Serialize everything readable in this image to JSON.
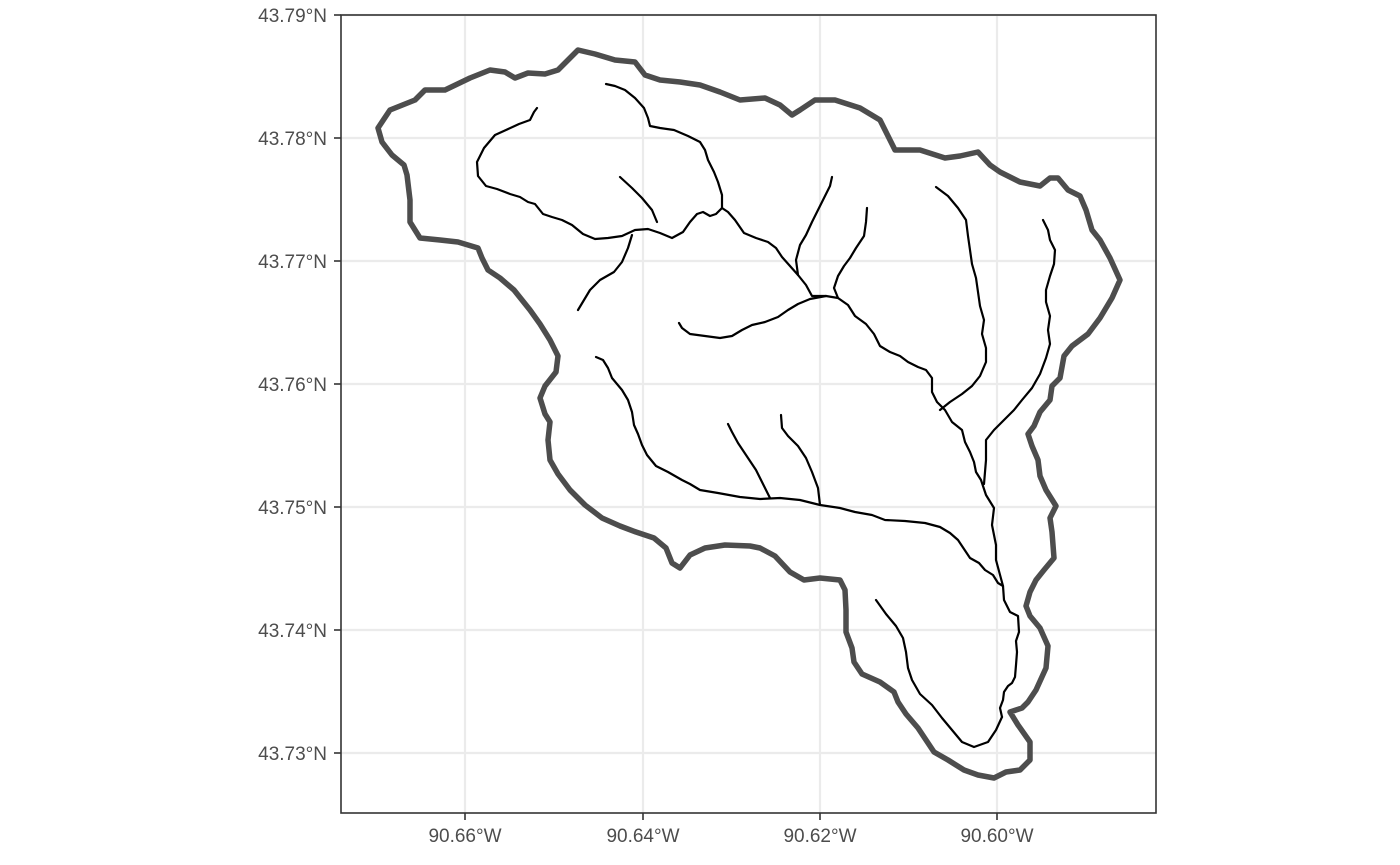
{
  "map": {
    "type": "watershed-map",
    "latitude_labels": [
      "43.79°N",
      "43.78°N",
      "43.77°N",
      "43.76°N",
      "43.75°N",
      "43.74°N",
      "43.73°N"
    ],
    "longitude_labels": [
      "90.66°W",
      "90.64°W",
      "90.62°W",
      "90.60°W"
    ],
    "layers": [
      "watershed-boundary",
      "stream-network"
    ],
    "colors": {
      "boundary": "#4d4d4d",
      "streams": "#000000",
      "grid": "#ebebeb",
      "panel_border": "#333333",
      "background": "#ffffff"
    },
    "grid": true
  }
}
